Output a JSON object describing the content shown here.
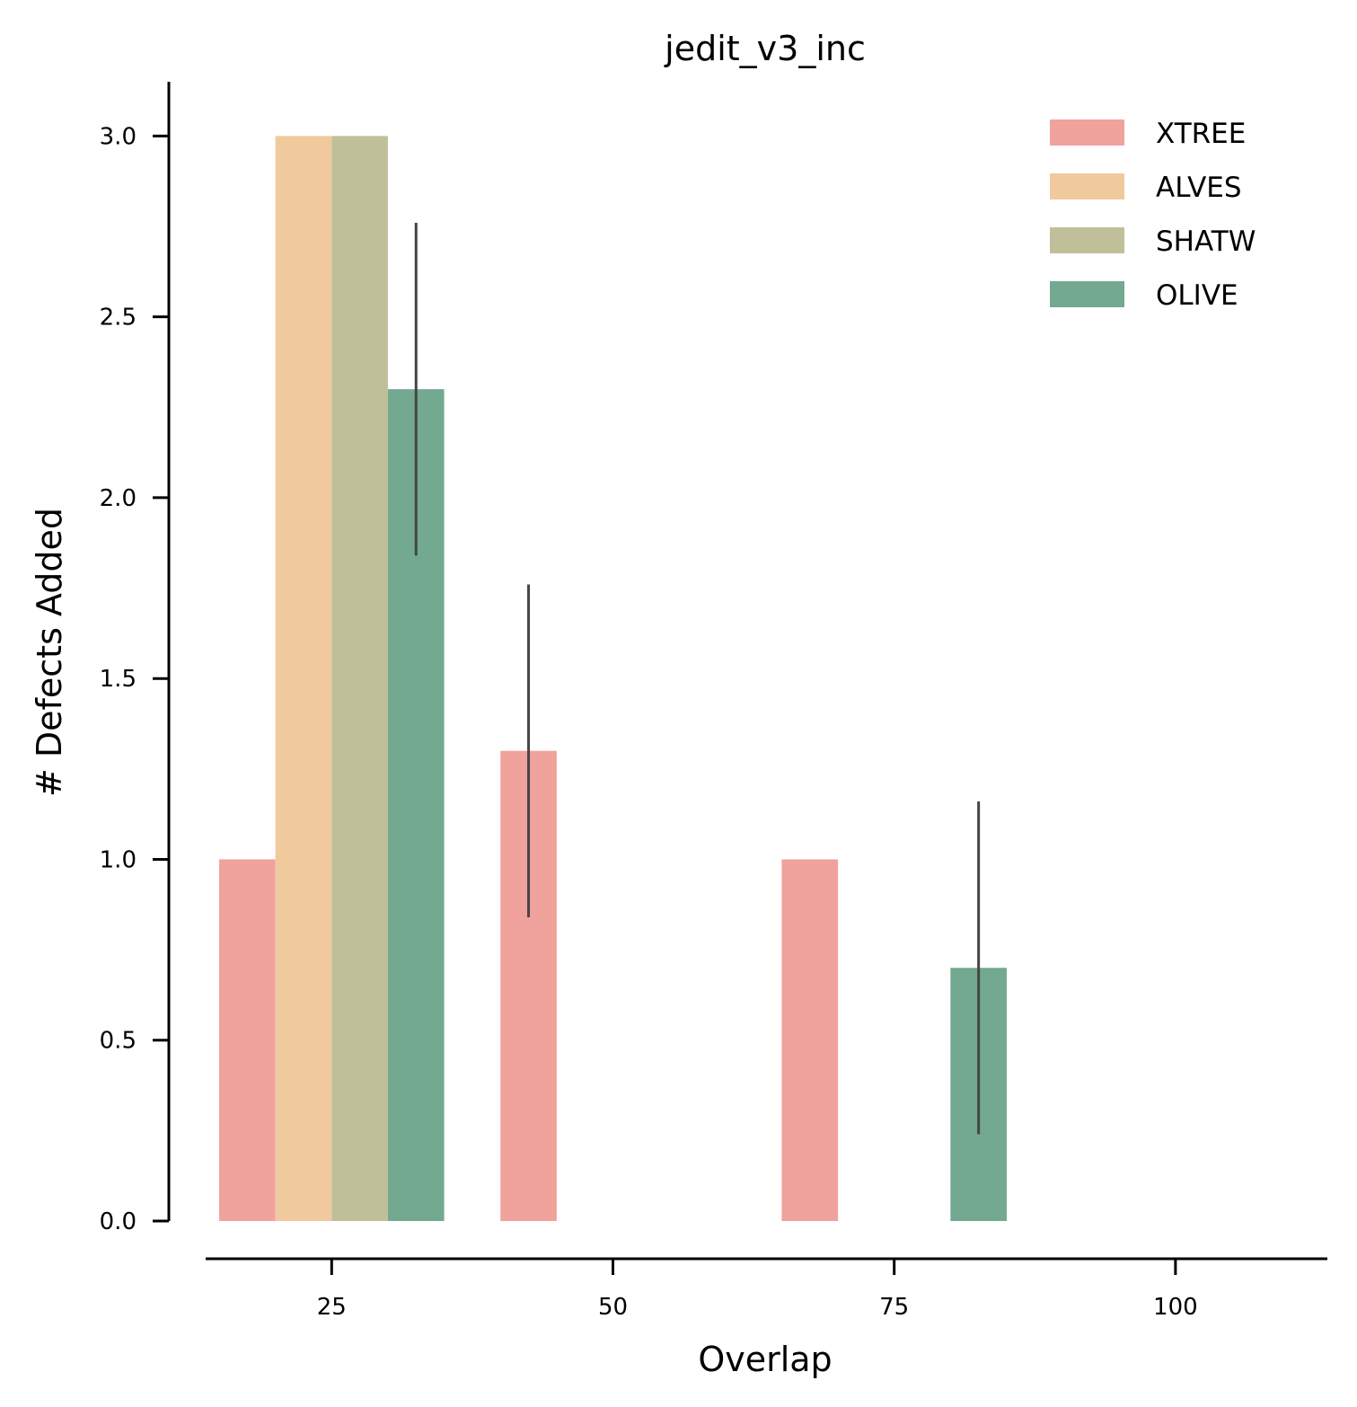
{
  "chart_data": {
    "type": "bar",
    "title": "jedit_v3_inc",
    "xlabel": "Overlap",
    "ylabel": "# Defects Added",
    "xlim": [
      13.8,
      113.5
    ],
    "ylim": [
      0,
      3.15
    ],
    "xticks": [
      25,
      50,
      75,
      100
    ],
    "xtick_labels": [
      "25",
      "50",
      "75",
      "100"
    ],
    "yticks": [
      0,
      0.5,
      1,
      1.5,
      2,
      2.5,
      3
    ],
    "ytick_labels": [
      "0.0",
      "0.5",
      "1.0",
      "1.5",
      "2.0",
      "2.5",
      "3.0"
    ],
    "bar_width": 5,
    "grid": false,
    "legend_position": "top-right",
    "series": [
      {
        "name": "XTREE",
        "color": "#f0a29d",
        "bars": [
          {
            "x": 17.5,
            "y": 1.0
          },
          {
            "x": 42.5,
            "y": 1.3,
            "err": [
              0.84,
              1.76
            ]
          },
          {
            "x": 67.5,
            "y": 1.0
          }
        ]
      },
      {
        "name": "ALVES",
        "color": "#f0c99d",
        "bars": [
          {
            "x": 22.5,
            "y": 3.0
          }
        ]
      },
      {
        "name": "SHATW",
        "color": "#bfc09a",
        "bars": [
          {
            "x": 27.5,
            "y": 3.0
          }
        ]
      },
      {
        "name": "OLIVE",
        "color": "#72a990",
        "bars": [
          {
            "x": 32.5,
            "y": 2.3,
            "err": [
              1.84,
              2.76
            ]
          },
          {
            "x": 82.5,
            "y": 0.7,
            "err": [
              0.24,
              1.16
            ]
          }
        ]
      }
    ]
  }
}
